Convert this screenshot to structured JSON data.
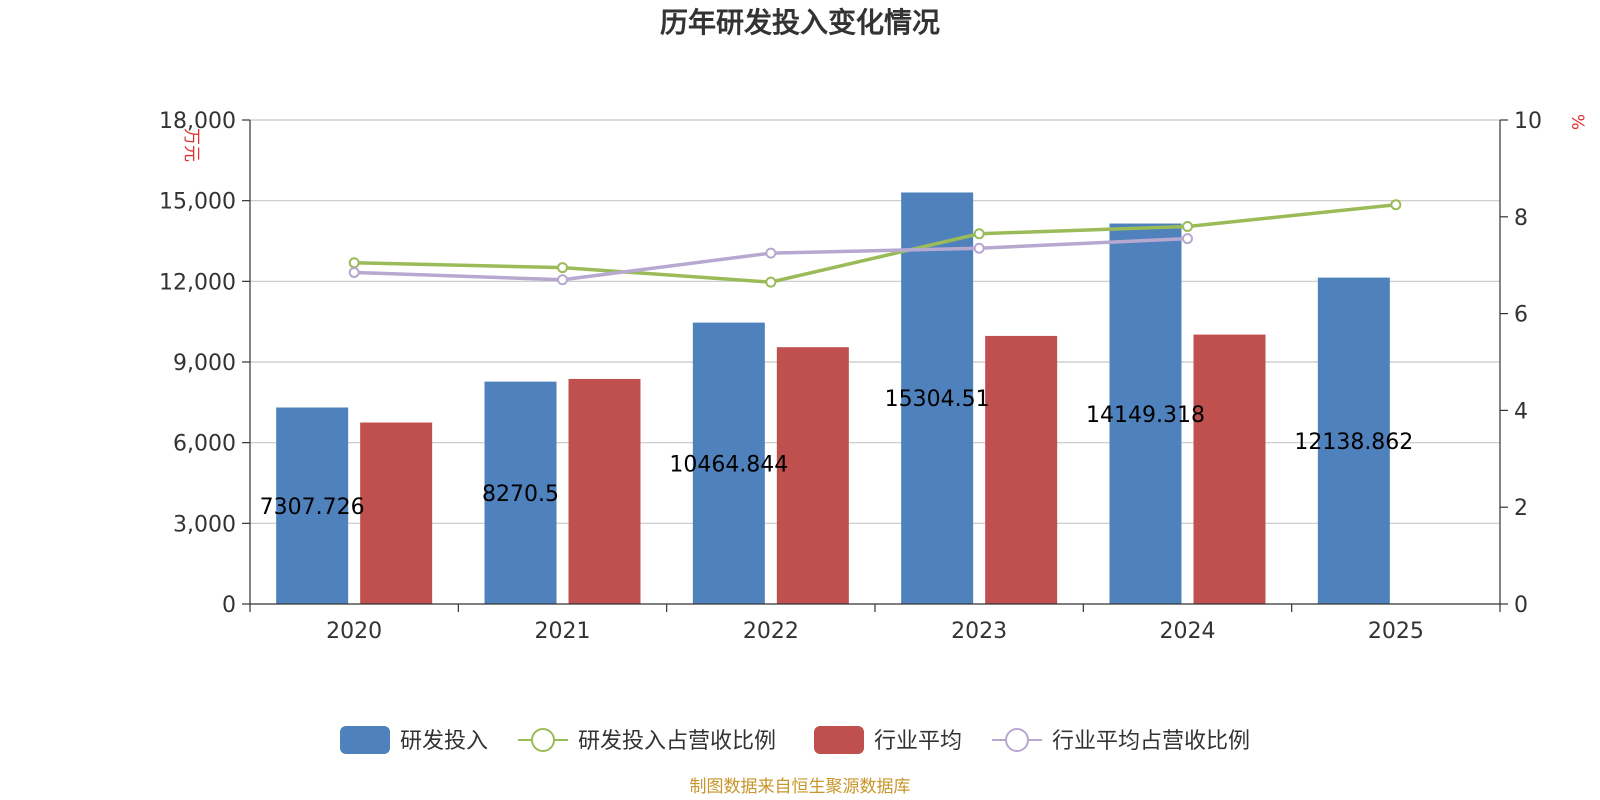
{
  "colors": {
    "rd_bar": "#4f81bd",
    "industry_bar": "#c0504d",
    "rd_ratio_line": "#9bbb59",
    "industry_ratio_line": "#b7a8d0",
    "grid": "#c8c8c8",
    "axis": "#333333",
    "unit_text": "#e03030",
    "source_text": "#c8962a"
  },
  "source_note": "制图数据来自恒生聚源数据库",
  "chart_data": {
    "type": "bar",
    "title": "历年研发投入变化情况",
    "categories": [
      "2020",
      "2021",
      "2022",
      "2023",
      "2024",
      "2025"
    ],
    "y_left": {
      "label": "万元",
      "ylim": [
        0,
        18000
      ],
      "ticks": [
        "0",
        "3,000",
        "6,000",
        "9,000",
        "12,000",
        "15,000",
        "18,000"
      ],
      "tick_values": [
        0,
        3000,
        6000,
        9000,
        12000,
        15000,
        18000
      ]
    },
    "y_right": {
      "label": "%",
      "ylim": [
        0,
        10
      ],
      "ticks": [
        "0",
        "2",
        "4",
        "6",
        "8",
        "10"
      ],
      "tick_values": [
        0,
        2,
        4,
        6,
        8,
        10
      ]
    },
    "grid": true,
    "legend_position": "bottom",
    "series": [
      {
        "name": "研发投入",
        "type": "bar",
        "axis": "left",
        "values": [
          7307.726,
          8270.5,
          10464.844,
          15304.51,
          14149.318,
          12138.862
        ],
        "data_labels": [
          "7307.726",
          "8270.5",
          "10464.844",
          "15304.51",
          "14149.318",
          "12138.862"
        ]
      },
      {
        "name": "研发投入占营收比例",
        "type": "line",
        "axis": "right",
        "values": [
          7.05,
          6.95,
          6.65,
          7.65,
          7.8,
          8.25
        ]
      },
      {
        "name": "行业平均",
        "type": "bar",
        "axis": "left",
        "values": [
          6750,
          8370,
          9550,
          9970,
          10020,
          null
        ]
      },
      {
        "name": "行业平均占营收比例",
        "type": "line",
        "axis": "right",
        "values": [
          6.85,
          6.7,
          7.25,
          7.35,
          7.55,
          null
        ]
      }
    ]
  }
}
